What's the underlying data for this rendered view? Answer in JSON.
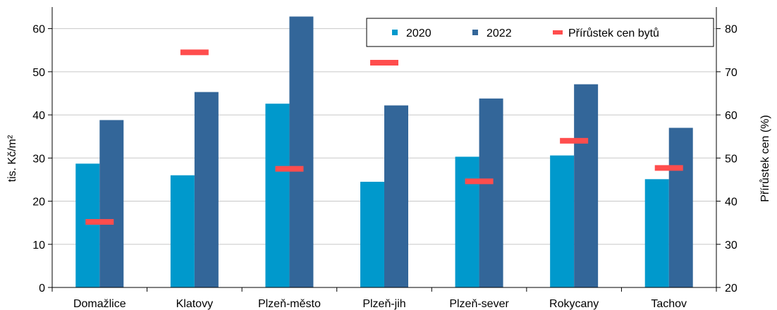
{
  "chart_data": {
    "type": "bar",
    "title": "",
    "categories": [
      "Domažlice",
      "Klatovy",
      "Plzeň-město",
      "Plzeň-jih",
      "Plzeň-sever",
      "Rokycany",
      "Tachov"
    ],
    "series": [
      {
        "name": "2020",
        "axis": "left",
        "color": "#0099cc",
        "values": [
          28.7,
          26.0,
          42.6,
          24.5,
          30.3,
          30.6,
          25.1
        ]
      },
      {
        "name": "2022",
        "axis": "left",
        "color": "#336699",
        "values": [
          38.8,
          45.3,
          62.8,
          42.2,
          43.8,
          47.1,
          37.0
        ]
      },
      {
        "name": "Přírůstek cen bytů",
        "axis": "right",
        "color": "#ff4d4d",
        "marker": "dash",
        "values": [
          35.2,
          74.5,
          47.5,
          72.1,
          44.6,
          54.0,
          47.7
        ]
      }
    ],
    "ylabel": "tis. Kč/m²",
    "y2label": "Přírůstek cen (%)",
    "ylim": [
      0,
      65
    ],
    "yticks": [
      0,
      10,
      20,
      30,
      40,
      50,
      60
    ],
    "y2lim": [
      20,
      85
    ],
    "y2ticks": [
      20,
      30,
      40,
      50,
      60,
      70,
      80
    ],
    "grid": true,
    "legend_position": "top-right"
  }
}
